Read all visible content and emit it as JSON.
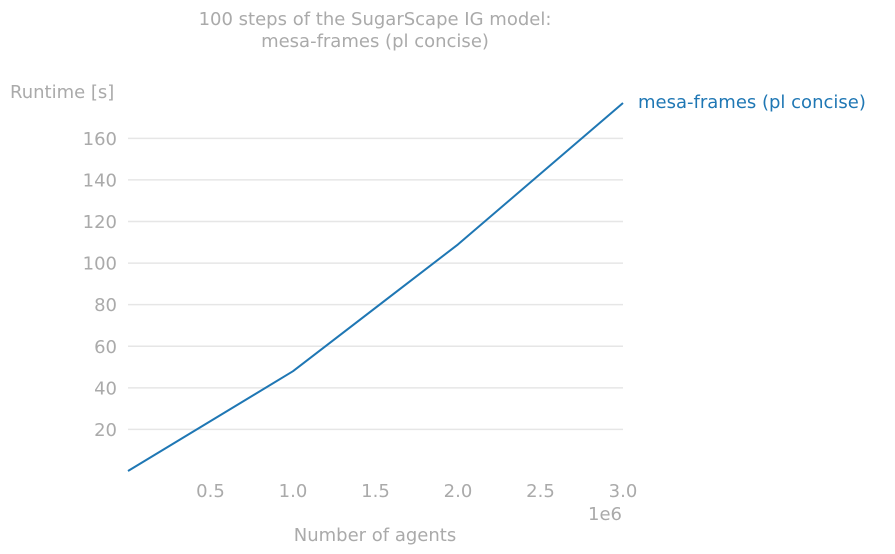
{
  "chart_data": {
    "type": "line",
    "title": [
      "100 steps of the SugarScape IG model:",
      "mesa-frames (pl concise)"
    ],
    "xlabel": "Number of agents",
    "ylabel": "Runtime [s]",
    "x_offset_label": "1e6",
    "xlim": [
      0,
      3000000
    ],
    "ylim": [
      0,
      177
    ],
    "grid": "horizontal",
    "legend": "inline-right",
    "x_ticks": [
      {
        "value": 500000,
        "label": "0.5"
      },
      {
        "value": 1000000,
        "label": "1.0"
      },
      {
        "value": 1500000,
        "label": "1.5"
      },
      {
        "value": 2000000,
        "label": "2.0"
      },
      {
        "value": 2500000,
        "label": "2.5"
      },
      {
        "value": 3000000,
        "label": "3.0"
      }
    ],
    "y_ticks": [
      {
        "value": 20,
        "label": "20"
      },
      {
        "value": 40,
        "label": "40"
      },
      {
        "value": 60,
        "label": "60"
      },
      {
        "value": 80,
        "label": "80"
      },
      {
        "value": 100,
        "label": "100"
      },
      {
        "value": 120,
        "label": "120"
      },
      {
        "value": 140,
        "label": "140"
      },
      {
        "value": 160,
        "label": "160"
      }
    ],
    "series": [
      {
        "name": "mesa-frames (pl concise)",
        "color": "#1f77b4",
        "x": [
          0,
          1000000,
          2000000,
          3000000
        ],
        "y": [
          0,
          48,
          109,
          177
        ]
      }
    ]
  },
  "colors": {
    "text": "#aaaaaa",
    "grid": "#e6e6e6"
  }
}
